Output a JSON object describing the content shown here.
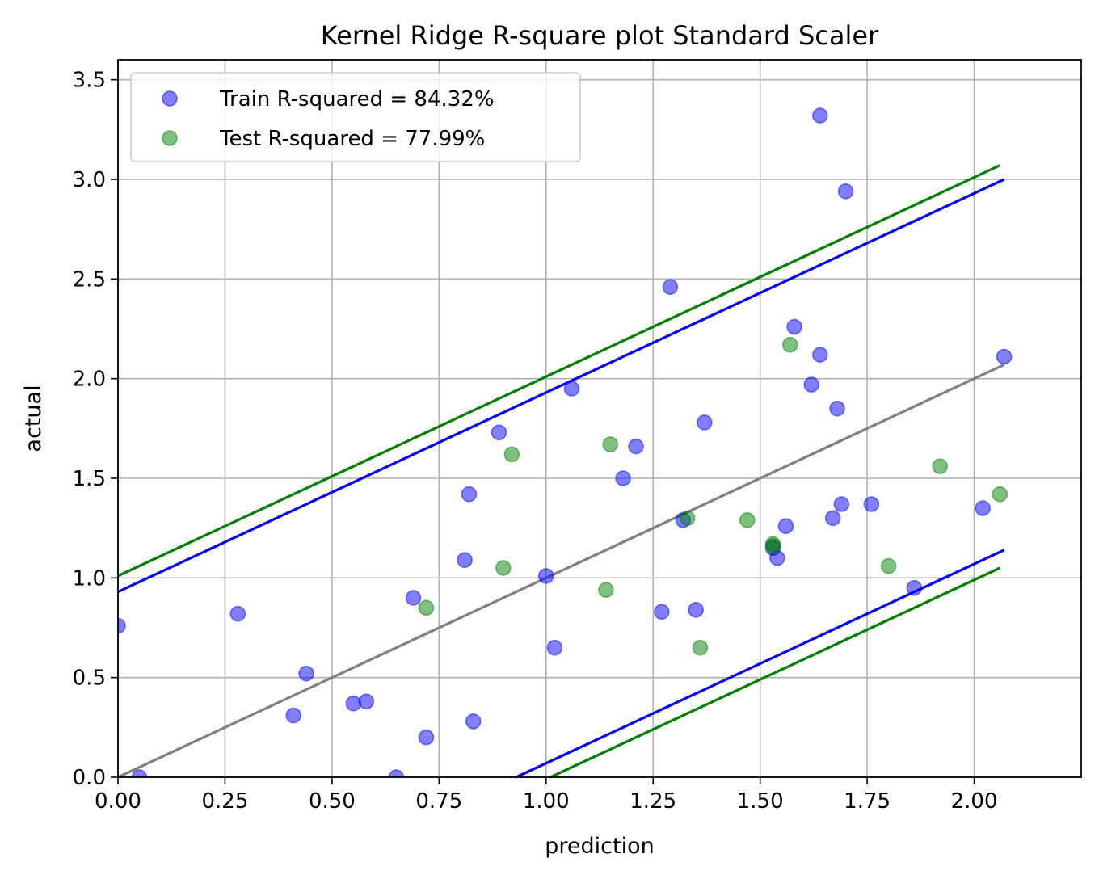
{
  "chart_data": {
    "type": "scatter",
    "title": "Kernel Ridge R-square plot Standard Scaler",
    "xlabel": "prediction",
    "ylabel": "actual",
    "xlim": [
      0,
      2.25
    ],
    "ylim": [
      0,
      3.6
    ],
    "x_ticks": [
      "0.00",
      "0.25",
      "0.50",
      "0.75",
      "1.00",
      "1.25",
      "1.50",
      "1.75",
      "2.00"
    ],
    "x_tick_values": [
      0,
      0.25,
      0.5,
      0.75,
      1.0,
      1.25,
      1.5,
      1.75,
      2.0
    ],
    "y_ticks": [
      "0.0",
      "0.5",
      "1.0",
      "1.5",
      "2.0",
      "2.5",
      "3.0",
      "3.5"
    ],
    "y_tick_values": [
      0,
      0.5,
      1.0,
      1.5,
      2.0,
      2.5,
      3.0,
      3.5
    ],
    "grid": true,
    "legend_position": "top-left",
    "series": [
      {
        "name": "Train R-squared = 84.32%",
        "kind": "scatter",
        "color": "#0000ff",
        "points": [
          [
            0.0,
            0.76
          ],
          [
            0.05,
            0.0
          ],
          [
            0.28,
            0.82
          ],
          [
            0.41,
            0.31
          ],
          [
            0.44,
            0.52
          ],
          [
            0.55,
            0.37
          ],
          [
            0.58,
            0.38
          ],
          [
            0.65,
            0.0
          ],
          [
            0.69,
            0.9
          ],
          [
            0.72,
            0.2
          ],
          [
            0.81,
            1.09
          ],
          [
            0.82,
            1.42
          ],
          [
            0.83,
            0.28
          ],
          [
            0.89,
            1.73
          ],
          [
            1.0,
            1.01
          ],
          [
            1.02,
            0.65
          ],
          [
            1.06,
            1.95
          ],
          [
            1.18,
            1.5
          ],
          [
            1.21,
            1.66
          ],
          [
            1.27,
            0.83
          ],
          [
            1.29,
            2.46
          ],
          [
            1.32,
            1.29
          ],
          [
            1.35,
            0.84
          ],
          [
            1.37,
            1.78
          ],
          [
            1.53,
            1.15
          ],
          [
            1.54,
            1.1
          ],
          [
            1.56,
            1.26
          ],
          [
            1.58,
            2.26
          ],
          [
            1.62,
            1.97
          ],
          [
            1.64,
            2.12
          ],
          [
            1.64,
            3.32
          ],
          [
            1.67,
            1.3
          ],
          [
            1.68,
            1.85
          ],
          [
            1.69,
            1.37
          ],
          [
            1.7,
            2.94
          ],
          [
            1.76,
            1.37
          ],
          [
            1.86,
            0.95
          ],
          [
            2.02,
            1.35
          ],
          [
            2.07,
            2.11
          ]
        ]
      },
      {
        "name": "Test R-squared = 77.99%",
        "kind": "scatter",
        "color": "#008000",
        "points": [
          [
            0.72,
            0.85
          ],
          [
            0.9,
            1.05
          ],
          [
            0.92,
            1.62
          ],
          [
            1.14,
            0.94
          ],
          [
            1.15,
            1.67
          ],
          [
            1.33,
            1.3
          ],
          [
            1.36,
            0.65
          ],
          [
            1.47,
            1.29
          ],
          [
            1.53,
            1.17
          ],
          [
            1.53,
            1.16
          ],
          [
            1.57,
            2.17
          ],
          [
            1.8,
            1.06
          ],
          [
            1.92,
            1.56
          ],
          [
            2.06,
            1.42
          ]
        ]
      }
    ],
    "lines": [
      {
        "kind": "identity",
        "color": "#808080",
        "x": [
          0.0,
          2.07
        ],
        "y": [
          0.0,
          2.07
        ]
      },
      {
        "kind": "train-upper",
        "color": "#0000ff",
        "x": [
          0.0,
          2.07
        ],
        "y": [
          0.93,
          3.0
        ]
      },
      {
        "kind": "train-lower",
        "color": "#0000ff",
        "x": [
          0.93,
          2.07
        ],
        "y": [
          0.0,
          1.14
        ]
      },
      {
        "kind": "test-upper",
        "color": "#008000",
        "x": [
          0.0,
          2.06
        ],
        "y": [
          1.01,
          3.07
        ]
      },
      {
        "kind": "test-lower",
        "color": "#008000",
        "x": [
          1.01,
          2.06
        ],
        "y": [
          0.0,
          1.05
        ]
      }
    ]
  }
}
